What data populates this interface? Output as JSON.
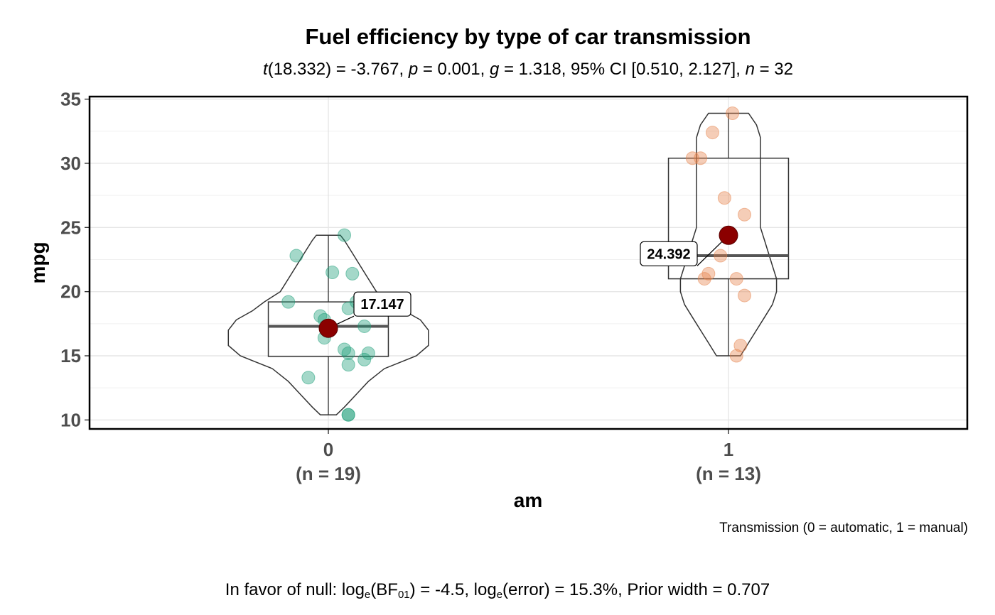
{
  "chart_data": {
    "type": "violin",
    "title": "Fuel efficiency by type of car transmission",
    "subtitle": {
      "t_label": "t",
      "t_value": "(18.332) = -3.767, ",
      "p_label": "p",
      "p_value": " = 0.001, ",
      "g_label": "g",
      "g_value": " = 1.318, 95% CI [0.510, 2.127], ",
      "n_label": "n",
      "n_value": " = 32"
    },
    "xlabel": "am",
    "ylabel": "mpg",
    "ylim": [
      9.3,
      35.2
    ],
    "yticks": [
      10,
      15,
      20,
      25,
      30,
      35
    ],
    "grid": true,
    "caption": "Transmission (0 = automatic, 1 = manual)",
    "footnote": {
      "prefix": "In favor of null: log",
      "e1": "e",
      "bf": "(BF",
      "sub01": "01",
      "mid": ") = -4.5, log",
      "e2": "e",
      "rest": "(error) = 15.3%, Prior width = 0.707"
    },
    "groups": [
      {
        "category": "0",
        "n_label": "(n = 19)",
        "color": "#1B9E77",
        "mean": 17.147,
        "mean_label": "17.147",
        "box": {
          "q1": 14.95,
          "median": 17.3,
          "q3": 19.2,
          "min": 10.4,
          "max": 24.4
        },
        "values": [
          21.4,
          18.7,
          18.1,
          14.3,
          24.4,
          22.8,
          19.2,
          17.8,
          16.4,
          17.3,
          15.2,
          10.4,
          10.4,
          14.7,
          21.5,
          15.5,
          15.2,
          13.3,
          19.2
        ],
        "jitter": [
          0.06,
          0.05,
          -0.02,
          0.05,
          0.04,
          -0.08,
          0.07,
          -0.01,
          -0.01,
          0.09,
          0.1,
          0.05,
          0.05,
          0.09,
          0.01,
          0.04,
          0.05,
          -0.05,
          -0.1
        ],
        "violin": [
          [
            10.4,
            0.02
          ],
          [
            11.0,
            0.04
          ],
          [
            12.0,
            0.07
          ],
          [
            13.0,
            0.1
          ],
          [
            14.0,
            0.14
          ],
          [
            15.0,
            0.22
          ],
          [
            15.8,
            0.25
          ],
          [
            16.5,
            0.25
          ],
          [
            17.0,
            0.25
          ],
          [
            17.8,
            0.23
          ],
          [
            18.5,
            0.19
          ],
          [
            19.2,
            0.16
          ],
          [
            20.0,
            0.12
          ],
          [
            21.0,
            0.1
          ],
          [
            22.0,
            0.08
          ],
          [
            23.0,
            0.06
          ],
          [
            24.0,
            0.04
          ],
          [
            24.4,
            0.03
          ]
        ]
      },
      {
        "category": "1",
        "n_label": "(n = 13)",
        "color": "#E6824A",
        "mean": 24.392,
        "mean_label": "24.392",
        "box": {
          "q1": 21.0,
          "median": 22.8,
          "q3": 30.4,
          "min": 15.0,
          "max": 33.9
        },
        "values": [
          21.0,
          21.0,
          22.8,
          32.4,
          30.4,
          33.9,
          27.3,
          26.0,
          30.4,
          15.8,
          19.7,
          15.0,
          21.4
        ],
        "jitter": [
          -0.06,
          0.02,
          -0.02,
          -0.04,
          -0.09,
          0.01,
          -0.01,
          0.04,
          -0.07,
          0.03,
          0.04,
          0.02,
          -0.05
        ],
        "violin": [
          [
            15.0,
            0.03
          ],
          [
            16.0,
            0.05
          ],
          [
            17.0,
            0.07
          ],
          [
            18.0,
            0.09
          ],
          [
            19.0,
            0.11
          ],
          [
            20.0,
            0.12
          ],
          [
            21.0,
            0.12
          ],
          [
            22.0,
            0.11
          ],
          [
            23.0,
            0.1
          ],
          [
            24.0,
            0.09
          ],
          [
            25.0,
            0.08
          ],
          [
            26.0,
            0.08
          ],
          [
            27.0,
            0.08
          ],
          [
            28.0,
            0.08
          ],
          [
            29.0,
            0.08
          ],
          [
            30.0,
            0.08
          ],
          [
            31.0,
            0.08
          ],
          [
            32.0,
            0.08
          ],
          [
            33.0,
            0.07
          ],
          [
            33.9,
            0.05
          ]
        ]
      }
    ]
  }
}
